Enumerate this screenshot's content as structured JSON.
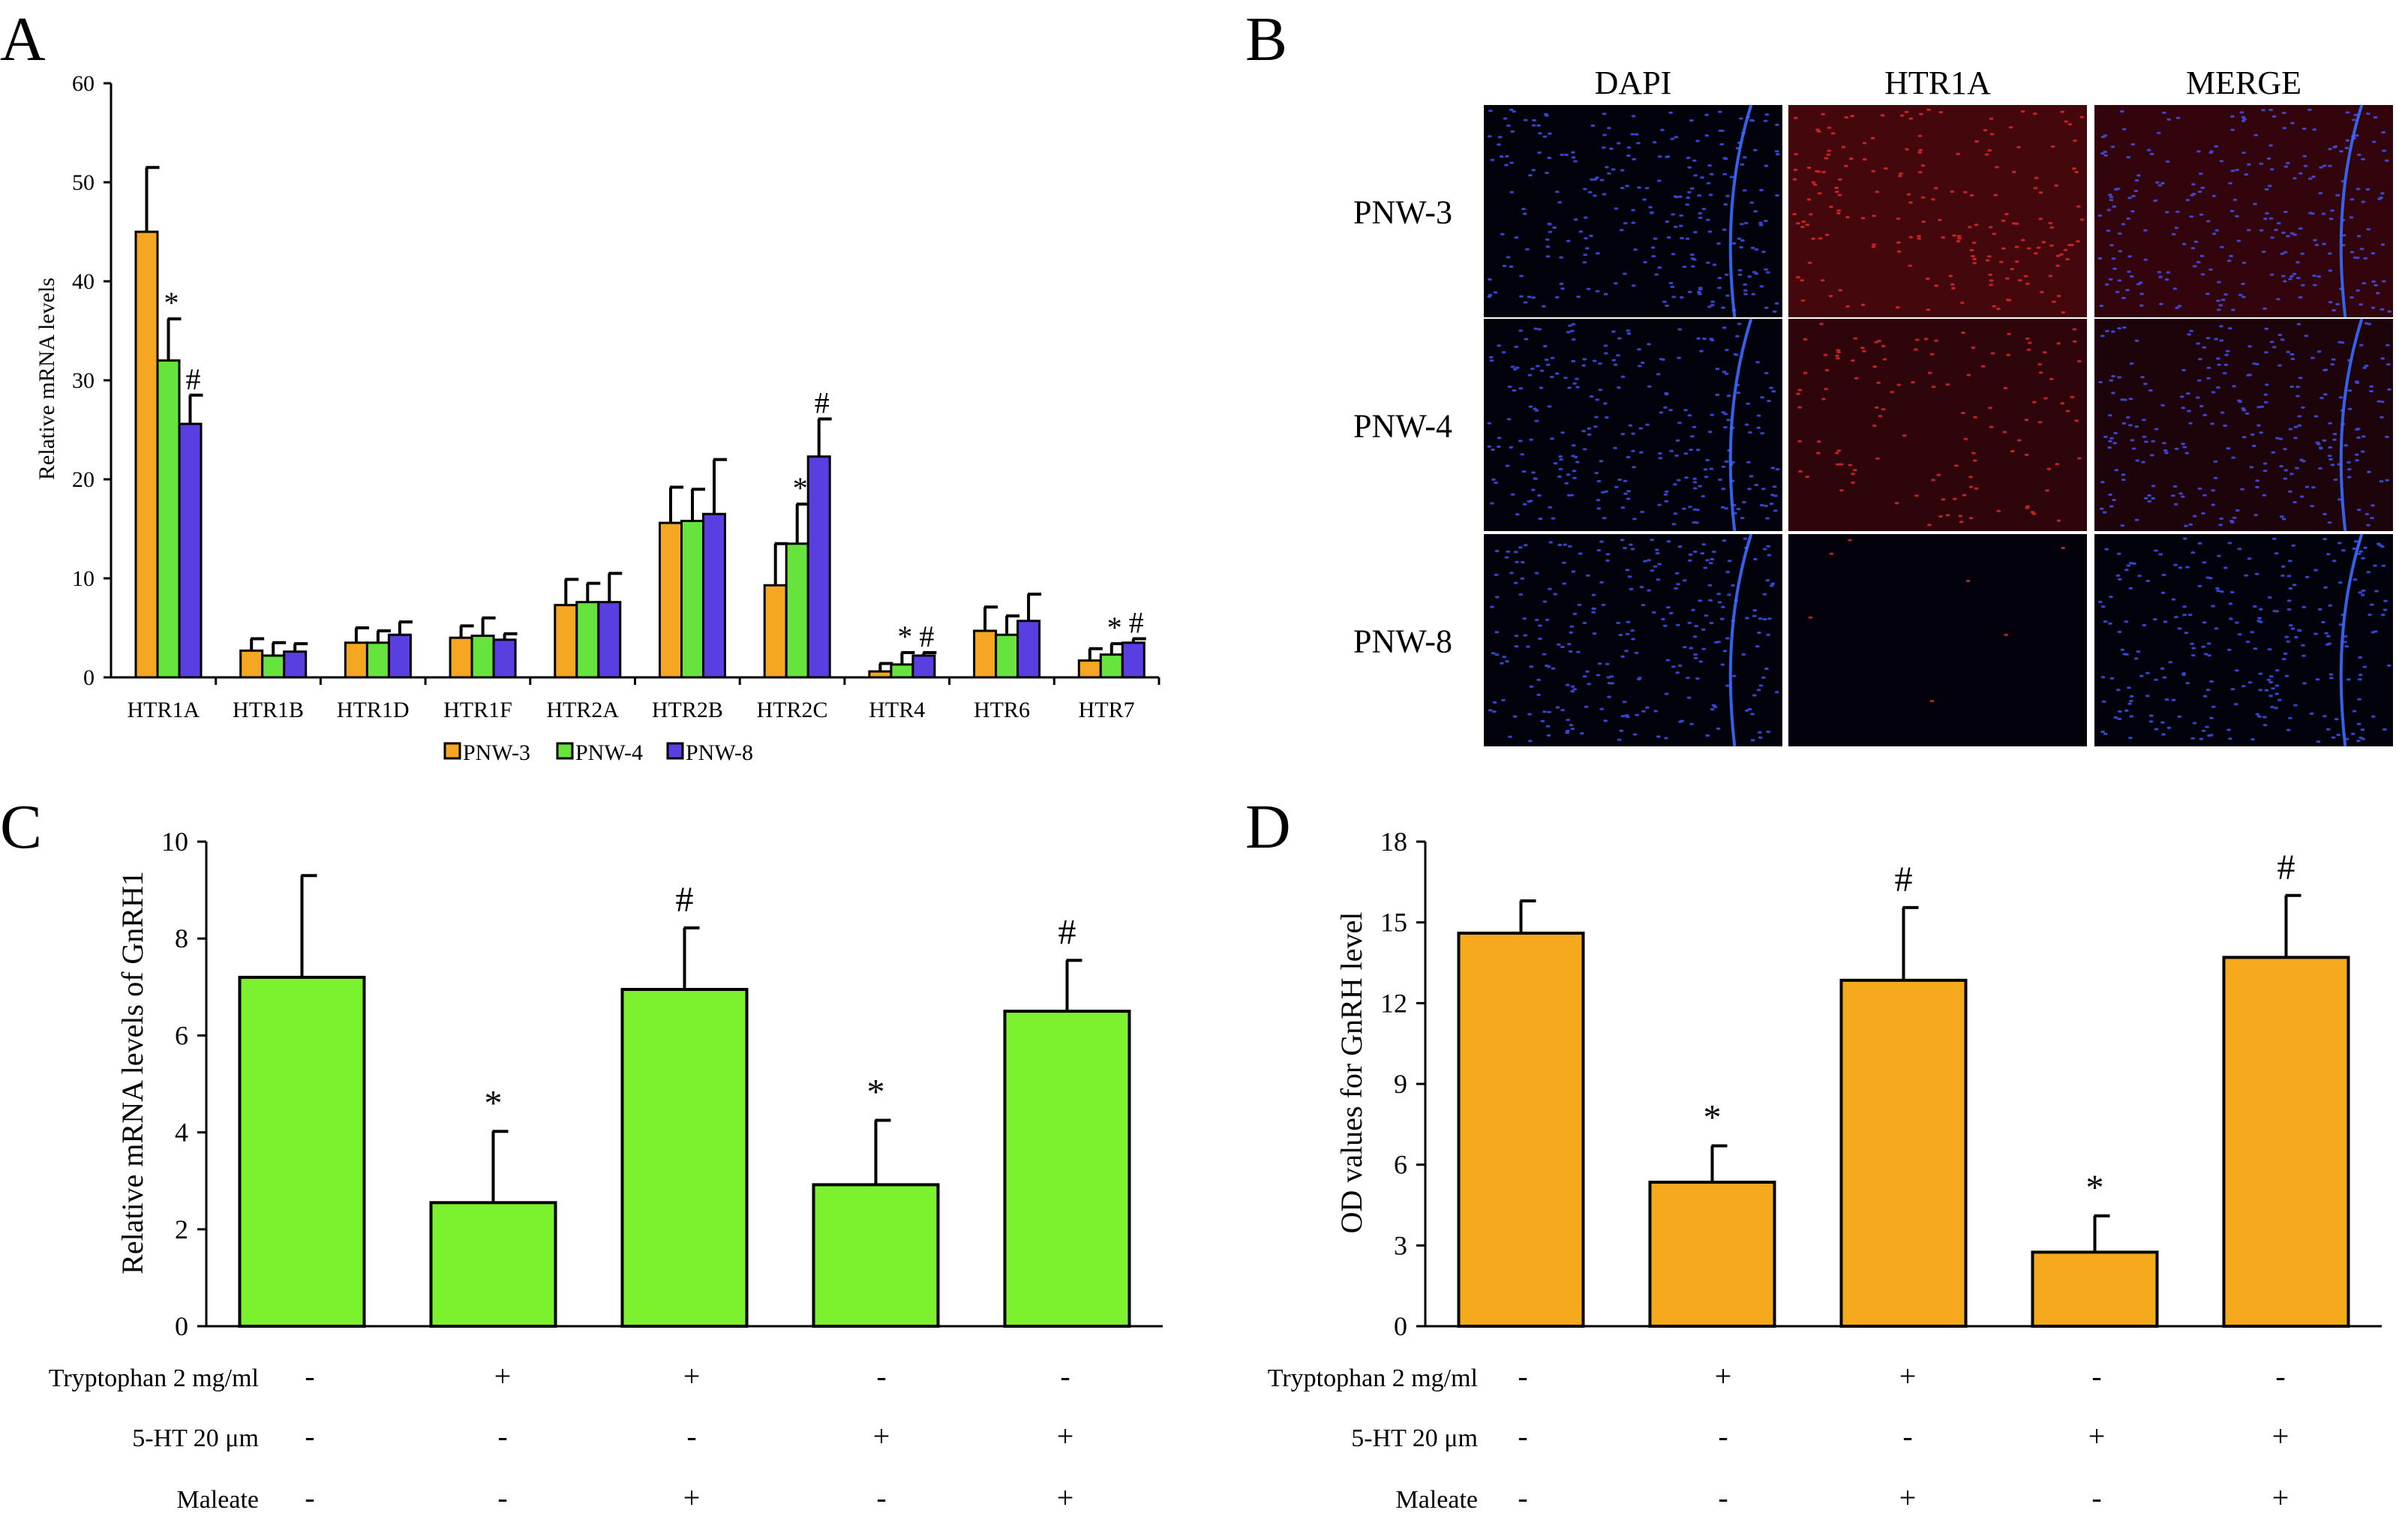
{
  "panel_labels": [
    "A",
    "B",
    "C",
    "D"
  ],
  "colors": {
    "PNW-3": "#F5A623",
    "PNW-4": "#66E33C",
    "PNW-8": "#5A3FE0",
    "panelC": "#7CF22E",
    "panelD": "#F5AA1E"
  },
  "chart_data": [
    {
      "panel": "A",
      "type": "bar",
      "ylabel": "Relative mRNA levels",
      "ylim": [
        0,
        60
      ],
      "yticks": [
        0,
        10,
        20,
        30,
        40,
        50,
        60
      ],
      "categories": [
        "HTR1A",
        "HTR1B",
        "HTR1D",
        "HTR1F",
        "HTR2A",
        "HTR2B",
        "HTR2C",
        "HTR4",
        "HTR6",
        "HTR7"
      ],
      "series": [
        {
          "name": "PNW-3",
          "values": [
            45.0,
            2.7,
            3.5,
            4.0,
            7.3,
            15.6,
            9.3,
            0.6,
            4.7,
            1.7
          ],
          "errors": [
            6.5,
            1.2,
            1.5,
            1.2,
            2.6,
            3.6,
            4.2,
            0.8,
            2.4,
            1.2
          ]
        },
        {
          "name": "PNW-4",
          "values": [
            32.0,
            2.2,
            3.5,
            4.2,
            7.6,
            15.8,
            13.5,
            1.3,
            4.3,
            2.3
          ],
          "errors": [
            4.2,
            1.3,
            1.2,
            1.8,
            1.9,
            3.2,
            4.0,
            1.2,
            1.9,
            1.1
          ]
        },
        {
          "name": "PNW-8",
          "values": [
            25.6,
            2.6,
            4.3,
            3.8,
            7.6,
            16.5,
            22.3,
            2.2,
            5.7,
            3.5
          ],
          "errors": [
            2.9,
            0.8,
            1.3,
            0.6,
            2.9,
            5.5,
            3.8,
            0.3,
            2.7,
            0.4
          ]
        }
      ],
      "annotations": [
        {
          "category": "HTR1A",
          "series": "PNW-4",
          "text": "*"
        },
        {
          "category": "HTR1A",
          "series": "PNW-8",
          "text": "#"
        },
        {
          "category": "HTR2C",
          "series": "PNW-4",
          "text": "*"
        },
        {
          "category": "HTR2C",
          "series": "PNW-8",
          "text": "#"
        },
        {
          "category": "HTR4",
          "series": "PNW-4",
          "text": "*"
        },
        {
          "category": "HTR4",
          "series": "PNW-8",
          "text": "#"
        },
        {
          "category": "HTR7",
          "series": "PNW-4",
          "text": "*"
        },
        {
          "category": "HTR7",
          "series": "PNW-8",
          "text": "#"
        }
      ],
      "legend": [
        "PNW-3",
        "PNW-4",
        "PNW-8"
      ],
      "legend_position": "bottom-center"
    },
    {
      "panel": "C",
      "type": "bar",
      "ylabel": "Relative mRNA levels of GnRH1",
      "ylim": [
        0,
        10
      ],
      "yticks": [
        0,
        2,
        4,
        6,
        8,
        10
      ],
      "values": [
        7.2,
        2.55,
        6.95,
        2.92,
        6.5
      ],
      "errors": [
        2.1,
        1.47,
        1.27,
        1.33,
        1.05
      ],
      "annotations": [
        "",
        "*",
        "#",
        "*",
        "#"
      ],
      "conditions": [
        {
          "label": "Tryptophan 2 mg/ml",
          "signs": [
            "-",
            "+",
            "+",
            "-",
            "-"
          ]
        },
        {
          "label": "5-HT 20 μm",
          "signs": [
            "-",
            "-",
            "-",
            "+",
            "+"
          ]
        },
        {
          "label": "Maleate",
          "signs": [
            "-",
            "-",
            "+",
            "-",
            "+"
          ]
        }
      ]
    },
    {
      "panel": "D",
      "type": "bar",
      "ylabel": "OD values for GnRH level",
      "ylim": [
        0,
        18
      ],
      "yticks": [
        0,
        3,
        6,
        9,
        12,
        15,
        18
      ],
      "values": [
        14.6,
        5.35,
        12.85,
        2.75,
        13.7
      ],
      "errors": [
        1.2,
        1.35,
        2.7,
        1.35,
        2.3
      ],
      "annotations": [
        "",
        "*",
        "#",
        "*",
        "#"
      ],
      "conditions": [
        {
          "label": "Tryptophan 2 mg/ml",
          "signs": [
            "-",
            "+",
            "+",
            "-",
            "-"
          ]
        },
        {
          "label": "5-HT 20 μm",
          "signs": [
            "-",
            "-",
            "-",
            "+",
            "+"
          ]
        },
        {
          "label": "Maleate",
          "signs": [
            "-",
            "-",
            "+",
            "-",
            "+"
          ]
        }
      ]
    }
  ],
  "micrographs": {
    "columns": [
      "DAPI",
      "HTR1A",
      "MERGE"
    ],
    "rows": [
      "PNW-3",
      "PNW-4",
      "PNW-8"
    ],
    "red_intensity": [
      [
        0,
        0.85,
        0.6
      ],
      [
        0,
        0.55,
        0.35
      ],
      [
        0,
        0.03,
        0
      ]
    ]
  }
}
